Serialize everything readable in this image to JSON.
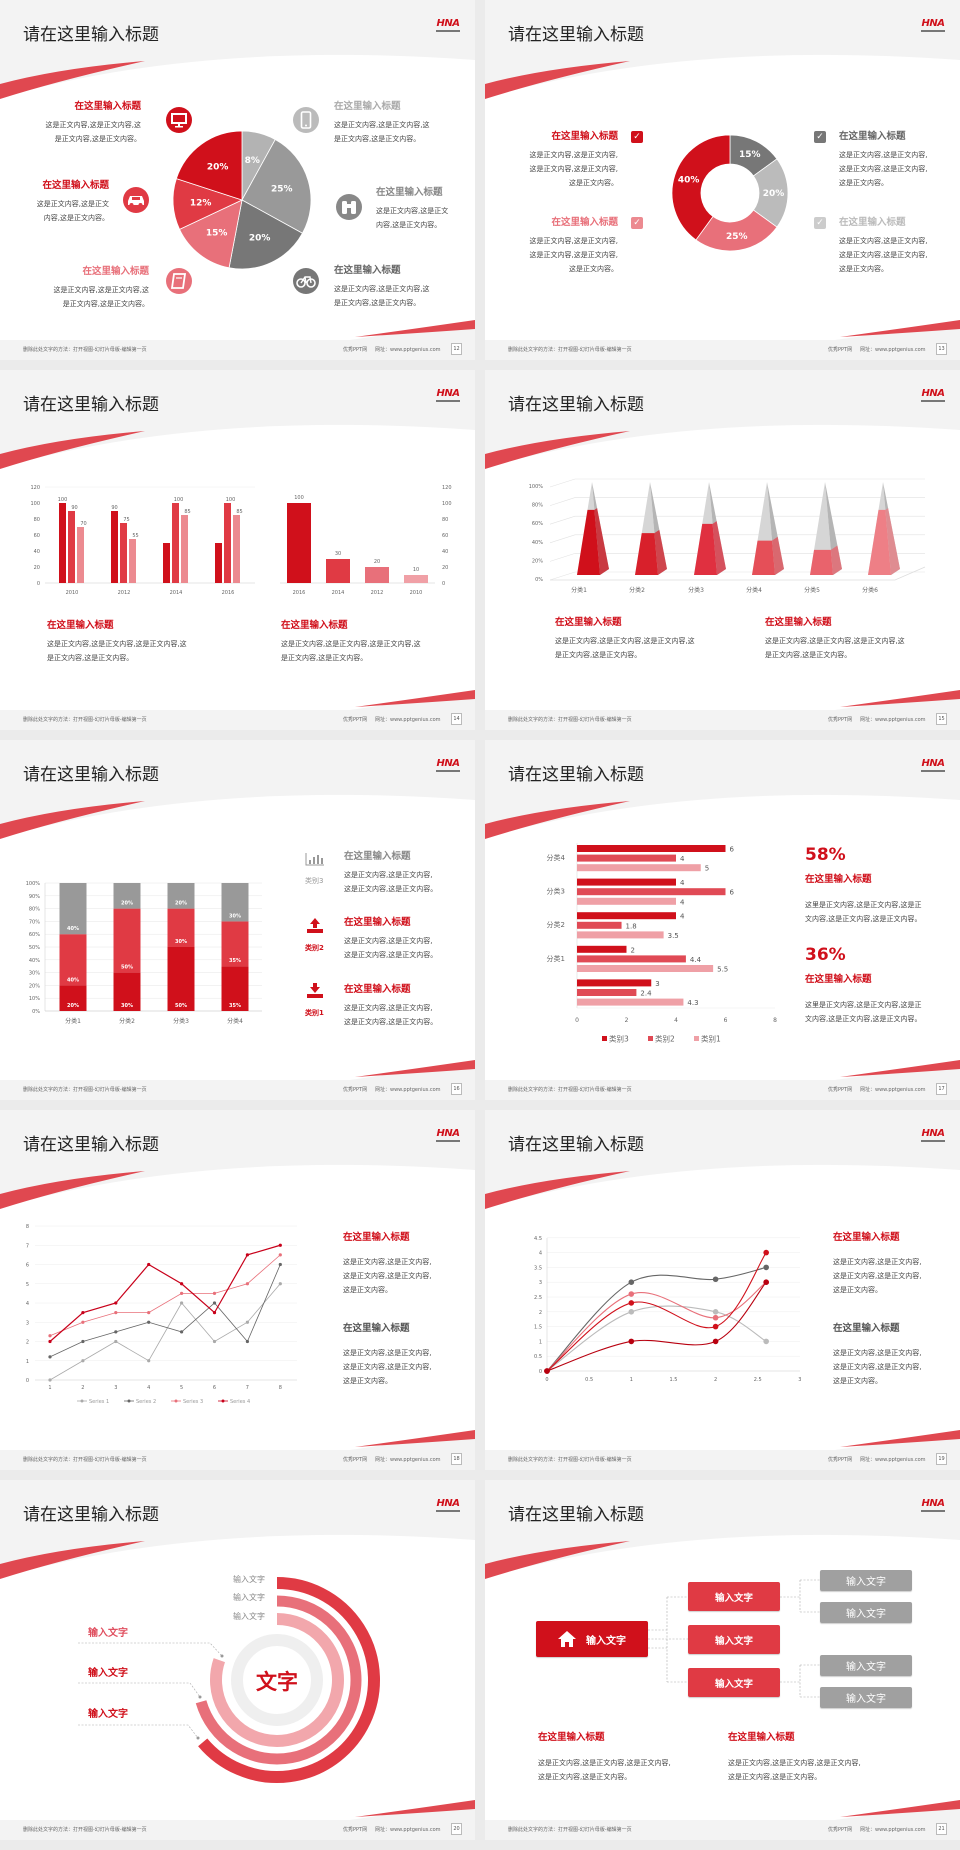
{
  "common": {
    "logo": "HNA",
    "footer_left": "删除此处文字的方法：打开视图-幻灯片母版-编辑第一页",
    "footer_site": "优秀PPT网",
    "footer_url": "网址：www.pptgenius.com"
  },
  "colors": {
    "red": "#d0101b",
    "red2": "#e03a44",
    "pink": "#e8707a",
    "pink2": "#f0a0a6",
    "gray1": "#777777",
    "gray2": "#999999",
    "gray3": "#bbbbbb",
    "swoosh": "#e04850"
  },
  "slides": [
    {
      "title": "请在这里输入标题",
      "page": "12",
      "icons": [
        "monitor-icon",
        "car-icon",
        "book-icon",
        "phone-icon",
        "binoculars-icon",
        "bicycle-icon"
      ],
      "items": [
        {
          "title": "在这里输入标题",
          "lines": [
            "这是正文内容,这是正文内容,这",
            "是正文内容,这是正文内容。"
          ]
        },
        {
          "title": "在这里输入标题",
          "lines": [
            "这是正文内容,这是正文",
            "内容,这是正文内容。"
          ]
        },
        {
          "title": "在这里输入标题",
          "lines": [
            "这是正文内容,这是正文内容,这",
            "是正文内容,这是正文内容。"
          ]
        },
        {
          "title": "在这里输入标题",
          "lines": [
            "这是正文内容,这是正文内容,这",
            "是正文内容,这是正文内容。"
          ]
        },
        {
          "title": "在这里输入标题",
          "lines": [
            "这是正文内容,这是正文",
            "内容,这是正文内容。"
          ]
        },
        {
          "title": "在这里输入标题",
          "lines": [
            "这是正文内容,这是正文内容,这",
            "是正文内容,这是正文内容。"
          ]
        }
      ]
    },
    {
      "title": "请在这里输入标题",
      "page": "13",
      "items": [
        {
          "title": "在这里输入标题",
          "lines": [
            "这是正文内容,这是正文内容,",
            "这是正文内容,这是正文内容,",
            "这是正文内容。"
          ]
        },
        {
          "title": "在这里输入标题",
          "lines": [
            "这是正文内容,这是正文内容,",
            "这是正文内容,这是正文内容,",
            "这是正文内容。"
          ]
        },
        {
          "title": "在这里输入标题",
          "lines": [
            "这是正文内容,这是正文内容,",
            "这是正文内容,这是正文内容,",
            "这是正文内容。"
          ]
        },
        {
          "title": "在这里输入标题",
          "lines": [
            "这是正文内容,这是正文内容,",
            "这是正文内容,这是正文内容,",
            "这是正文内容。"
          ]
        }
      ]
    },
    {
      "title": "请在这里输入标题",
      "page": "14",
      "items": [
        {
          "title": "在这里输入标题",
          "lines": [
            "这是正文内容,这是正文内容,这是正文内容,这",
            "是正文内容,这是正文内容。"
          ]
        },
        {
          "title": "在这里输入标题",
          "lines": [
            "这是正文内容,这是正文内容,这是正文内容,这",
            "是正文内容,这是正文内容。"
          ]
        }
      ]
    },
    {
      "title": "请在这里输入标题",
      "page": "15",
      "items": [
        {
          "title": "在这里输入标题",
          "lines": [
            "这是正文内容,这是正文内容,这是正文内容,这",
            "是正文内容,这是正文内容。"
          ]
        },
        {
          "title": "在这里输入标题",
          "lines": [
            "这是正文内容,这是正文内容,这是正文内容,这",
            "是正文内容,这是正文内容。"
          ]
        }
      ]
    },
    {
      "title": "请在这里输入标题",
      "page": "16",
      "legend": [
        "类别3",
        "类别2",
        "类别1"
      ],
      "items": [
        {
          "title": "在这里输入标题",
          "lines": [
            "这是正文内容,这是正文内容,",
            "这是正文内容,这是正文内容。"
          ]
        },
        {
          "title": "在这里输入标题",
          "lines": [
            "这是正文内容,这是正文内容,",
            "这是正文内容,这是正文内容。"
          ]
        },
        {
          "title": "在这里输入标题",
          "lines": [
            "这是正文内容,这是正文内容,",
            "这是正文内容,这是正文内容。"
          ]
        }
      ]
    },
    {
      "title": "请在这里输入标题",
      "page": "17",
      "stats": [
        "58%",
        "36%"
      ],
      "items": [
        {
          "title": "在这里输入标题",
          "lines": [
            "这里是正文内容,这是正文内容,这是正",
            "文内容,这是正文内容,这是正文内容。"
          ]
        },
        {
          "title": "在这里输入标题",
          "lines": [
            "这里是正文内容,这是正文内容,这是正",
            "文内容,这是正文内容,这是正文内容。"
          ]
        }
      ]
    },
    {
      "title": "请在这里输入标题",
      "page": "18",
      "items": [
        {
          "title": "在这里输入标题",
          "lines": [
            "这是正文内容,这是正文内容,",
            "这是正文内容,这是正文内容,",
            "这是正文内容。"
          ]
        },
        {
          "title": "在这里输入标题",
          "lines": [
            "这是正文内容,这是正文内容,",
            "这是正文内容,这是正文内容,",
            "这是正文内容。"
          ]
        }
      ]
    },
    {
      "title": "请在这里输入标题",
      "page": "19",
      "items": [
        {
          "title": "在这里输入标题",
          "lines": [
            "这是正文内容,这是正文内容,",
            "这是正文内容,这是正文内容,",
            "这是正文内容。"
          ]
        },
        {
          "title": "在这里输入标题",
          "lines": [
            "这是正文内容,这是正文内容,",
            "这是正文内容,这是正文内容,",
            "这是正文内容。"
          ]
        }
      ]
    },
    {
      "title": "请在这里输入标题",
      "page": "20",
      "center": "文字",
      "ring_labels": [
        "输入文字",
        "输入文字",
        "输入文字"
      ],
      "side_labels": [
        "输入文字",
        "输入文字",
        "输入文字"
      ]
    },
    {
      "title": "请在这里输入标题",
      "page": "21",
      "root": "输入文字",
      "mid": [
        "输入文字",
        "输入文字",
        "输入文字"
      ],
      "leaves": [
        "输入文字",
        "输入文字",
        "输入文字",
        "输入文字"
      ],
      "items": [
        {
          "title": "在这里输入标题",
          "lines": [
            "这是正文内容,这是正文内容,这是正文内容,",
            "这是正文内容,这是正文内容。"
          ]
        },
        {
          "title": "在这里输入标题",
          "lines": [
            "这是正文内容,这是正文内容,这是正文内容,",
            "这是正文内容,这是正文内容。"
          ]
        }
      ]
    }
  ],
  "chart_data": [
    {
      "slide": "12",
      "type": "pie",
      "values": [
        8,
        25,
        20,
        15,
        12,
        20
      ],
      "labels": [
        "8%",
        "25%",
        "20%",
        "15%",
        "12%",
        "20%"
      ],
      "colors": [
        "#b3b3b3",
        "#999999",
        "#777777",
        "#e8707a",
        "#e03a44",
        "#d0101b"
      ]
    },
    {
      "slide": "13",
      "type": "pie",
      "donut": true,
      "values": [
        15,
        20,
        25,
        40
      ],
      "labels": [
        "15%",
        "20%",
        "25%",
        "40%"
      ],
      "colors": [
        "#777777",
        "#bbbbbb",
        "#e8707a",
        "#d0101b"
      ]
    },
    {
      "slide": "14",
      "type": "bar",
      "categories": [
        "2010",
        "2012",
        "2014",
        "2016"
      ],
      "ylim": [
        0,
        120
      ],
      "yticks": [
        0,
        20,
        40,
        60,
        80,
        100,
        120
      ],
      "series": [
        {
          "values": [
            100,
            90,
            50,
            50
          ],
          "labels": [
            "100",
            "90",
            "",
            ""
          ]
        },
        {
          "values": [
            90,
            75,
            100,
            100
          ],
          "labels": [
            "90",
            "75",
            "100",
            "100"
          ]
        },
        {
          "values": [
            70,
            55,
            85,
            85
          ],
          "labels": [
            "70",
            "55",
            "85",
            "85"
          ]
        }
      ]
    },
    {
      "slide": "14",
      "type": "bar",
      "categories": [
        "2016",
        "2014",
        "2012",
        "2010"
      ],
      "values": [
        100,
        30,
        20,
        10
      ],
      "ylim": [
        0,
        120
      ],
      "yticks": [
        0,
        20,
        40,
        60,
        80,
        100,
        120
      ],
      "yaxis": "right"
    },
    {
      "slide": "15",
      "type": "bar",
      "style": "3d-pyramid",
      "categories": [
        "分类1",
        "分类2",
        "分类3",
        "分类4",
        "分类5",
        "分类6"
      ],
      "values": [
        70,
        45,
        55,
        37,
        27,
        70
      ],
      "ylim": [
        0,
        100
      ],
      "yticks": [
        "0%",
        "20%",
        "40%",
        "60%",
        "80%",
        "100%"
      ]
    },
    {
      "slide": "16",
      "type": "bar",
      "stacked": true,
      "categories": [
        "分类1",
        "分类2",
        "分类3",
        "分类4"
      ],
      "ylim": [
        0,
        100
      ],
      "yticks": [
        "0%",
        "10%",
        "20%",
        "30%",
        "40%",
        "50%",
        "60%",
        "70%",
        "80%",
        "90%",
        "100%"
      ],
      "series": [
        {
          "values": [
            20,
            30,
            50,
            35
          ],
          "labels": [
            "20%",
            "30%",
            "50%",
            "35%"
          ]
        },
        {
          "values": [
            40,
            50,
            30,
            35
          ],
          "labels": [
            "40%",
            "50%",
            "30%",
            "35%"
          ]
        },
        {
          "values": [
            40,
            20,
            20,
            30
          ],
          "labels": [
            "40%",
            "20%",
            "20%",
            "30%"
          ]
        }
      ]
    },
    {
      "slide": "17",
      "type": "bar",
      "orientation": "horizontal",
      "categories": [
        "分类4",
        "分类3",
        "分类2",
        "分类1",
        ""
      ],
      "xlim": [
        0,
        8
      ],
      "xticks": [
        0,
        2,
        4,
        6,
        8
      ],
      "legend": "bottom",
      "series": [
        {
          "name": "类别3",
          "values": [
            6,
            4,
            4,
            2,
            3
          ]
        },
        {
          "name": "类别2",
          "values": [
            4,
            6,
            1.8,
            4.4,
            2.4
          ]
        },
        {
          "name": "类别1",
          "values": [
            5,
            4,
            3.5,
            5.5,
            4.3
          ]
        }
      ]
    },
    {
      "slide": "18",
      "type": "line",
      "x": [
        1,
        2,
        3,
        4,
        5,
        6,
        7,
        8
      ],
      "ylim": [
        0,
        8
      ],
      "legend": "bottom",
      "series": [
        {
          "name": "Series 1",
          "values": [
            0,
            1,
            2,
            1,
            4,
            2,
            3,
            5
          ]
        },
        {
          "name": "Series 2",
          "values": [
            1.2,
            2,
            2.5,
            3,
            2.5,
            4,
            2,
            6
          ]
        },
        {
          "name": "Series 3",
          "values": [
            2.3,
            3,
            3.5,
            3.5,
            4.5,
            4.5,
            5,
            6.5
          ]
        },
        {
          "name": "Series 4",
          "values": [
            2,
            3.5,
            4,
            6,
            5,
            3.5,
            6.5,
            7
          ]
        }
      ]
    },
    {
      "slide": "19",
      "type": "scatter",
      "smooth": true,
      "x": [
        0,
        1,
        2,
        2.6
      ],
      "xlim": [
        0,
        3
      ],
      "ylim": [
        0,
        4.5
      ],
      "xticks": [
        "0",
        "0.5",
        "1",
        "1.5",
        "2",
        "2.5",
        "3"
      ],
      "yticks": [
        "0",
        "0.5",
        "1",
        "1.5",
        "2",
        "2.5",
        "3",
        "3.5",
        "4",
        "4.5"
      ],
      "series": [
        {
          "values": [
            0,
            3,
            3.1,
            3.5
          ],
          "color": "#666666"
        },
        {
          "values": [
            0,
            2,
            2,
            1
          ],
          "color": "#bbbbbb"
        },
        {
          "values": [
            0,
            2.6,
            1.8,
            3
          ],
          "color": "#e8707a"
        },
        {
          "values": [
            0,
            2.3,
            1.5,
            4
          ],
          "color": "#d0101b"
        },
        {
          "values": [
            0,
            1,
            1,
            3
          ],
          "color": "#b8000f"
        }
      ]
    }
  ]
}
